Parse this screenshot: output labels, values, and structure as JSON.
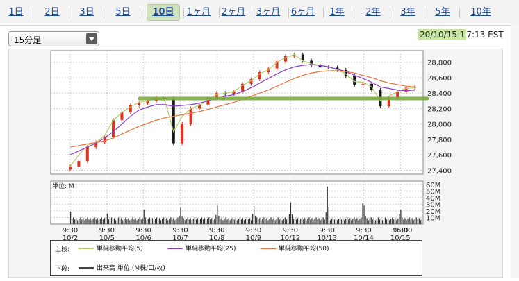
{
  "tabs": [
    {
      "label": "1日",
      "active": false
    },
    {
      "label": "2日",
      "active": false
    },
    {
      "label": "3日",
      "active": false
    },
    {
      "label": "5日",
      "active": false
    },
    {
      "label": "10日",
      "active": true
    },
    {
      "label": "1ヶ月",
      "active": false
    },
    {
      "label": "2ヶ月",
      "active": false
    },
    {
      "label": "3ヶ月",
      "active": false
    },
    {
      "label": "6ヶ月",
      "active": false
    },
    {
      "label": "1年",
      "active": false
    },
    {
      "label": "2年",
      "active": false
    },
    {
      "label": "3年",
      "active": false
    },
    {
      "label": "5年",
      "active": false
    },
    {
      "label": "10年",
      "active": false
    }
  ],
  "interval_select": {
    "value": "15分足"
  },
  "timestamp": {
    "highlight": "20/10/15 1",
    "rest": "7:13 EST"
  },
  "colors": {
    "candle_up": "#e0301e",
    "candle_down": "#1a1a1a",
    "ma5": "#b5cc6a",
    "ma25": "#8a3ccf",
    "ma50": "#e8703a",
    "support_line": "#7aaa3e",
    "volume": "#333333",
    "grid": "#cfcfcf"
  },
  "chart_data": [
    {
      "type": "line",
      "title": "",
      "ylim": [
        27350,
        28950
      ],
      "y_ticks": [
        "28,800",
        "28,600",
        "28,400",
        "28,200",
        "28,000",
        "27,800",
        "27,600",
        "27,400"
      ],
      "y_tick_values": [
        28800,
        28600,
        28400,
        28200,
        28000,
        27800,
        27600,
        27400
      ],
      "series": [
        {
          "name": "単純移動平均(5)",
          "values": [
            27450,
            27600,
            27720,
            27760,
            27850,
            28050,
            28150,
            28220,
            28280,
            28300,
            28330,
            28300,
            27900,
            28100,
            28200,
            28240,
            28320,
            28380,
            28400,
            28420,
            28500,
            28560,
            28650,
            28700,
            28800,
            28860,
            28900,
            28820,
            28780,
            28760,
            28740,
            28700,
            28650,
            28550,
            28540,
            28480,
            28300,
            28360,
            28420,
            28460,
            28470
          ]
        },
        {
          "name": "単純移動平均(25)",
          "values": [
            27600,
            27650,
            27700,
            27750,
            27820,
            27900,
            28000,
            28100,
            28180,
            28220,
            28250,
            28250,
            28230,
            28240,
            28250,
            28270,
            28300,
            28330,
            28360,
            28380,
            28420,
            28470,
            28530,
            28590,
            28650,
            28700,
            28740,
            28760,
            28770,
            28760,
            28740,
            28710,
            28680,
            28630,
            28590,
            28540,
            28480,
            28460,
            28440,
            28430,
            28440
          ]
        },
        {
          "name": "単純移動平均(50)",
          "values": [
            27700,
            27720,
            27740,
            27760,
            27780,
            27820,
            27870,
            27920,
            27970,
            28010,
            28050,
            28080,
            28100,
            28120,
            28140,
            28160,
            28190,
            28220,
            28250,
            28280,
            28320,
            28360,
            28400,
            28440,
            28490,
            28540,
            28590,
            28630,
            28660,
            28680,
            28690,
            28690,
            28680,
            28660,
            28630,
            28600,
            28560,
            28530,
            28510,
            28490,
            28480
          ]
        }
      ],
      "support_level": 28330,
      "candle_closes": [
        27450,
        27520,
        27700,
        27760,
        27830,
        28050,
        28150,
        28240,
        28270,
        28300,
        28340,
        28330,
        27750,
        28000,
        28200,
        28250,
        28340,
        28400,
        28390,
        28420,
        28520,
        28580,
        28670,
        28720,
        28810,
        28880,
        28900,
        28820,
        28760,
        28740,
        28730,
        28700,
        28620,
        28510,
        28520,
        28440,
        28230,
        28340,
        28420,
        28470,
        28480
      ]
    },
    {
      "type": "bar",
      "y_ticks": [
        "60M",
        "50M",
        "40M",
        "30M",
        "20M",
        "10M"
      ],
      "y_tick_values": [
        60,
        50,
        40,
        30,
        20,
        10
      ],
      "unit_label": "単位: M",
      "x_tick_times": [
        "9:30",
        "9:30",
        "9:30",
        "9:30",
        "9:30",
        "9:30",
        "9:30",
        "9:30",
        "9:30",
        "9:30",
        "16:00"
      ],
      "x_tick_dates": [
        "10/2",
        "10/5",
        "10/6",
        "10/7",
        "10/8",
        "10/9",
        "10/12",
        "10/13",
        "10/14",
        "10/15",
        ""
      ],
      "day_spikes": [
        19,
        16,
        22,
        25,
        28,
        27,
        33,
        57,
        28,
        22
      ],
      "baseline": 6
    }
  ],
  "legend": {
    "upper_label": "上段:",
    "lower_label": "下段:",
    "ma5": "単純移動平均(5)",
    "ma25": "単純移動平均(25)",
    "ma50": "単純移動平均(50)",
    "volume": "出来高 単位:(M株/口/枚)"
  }
}
